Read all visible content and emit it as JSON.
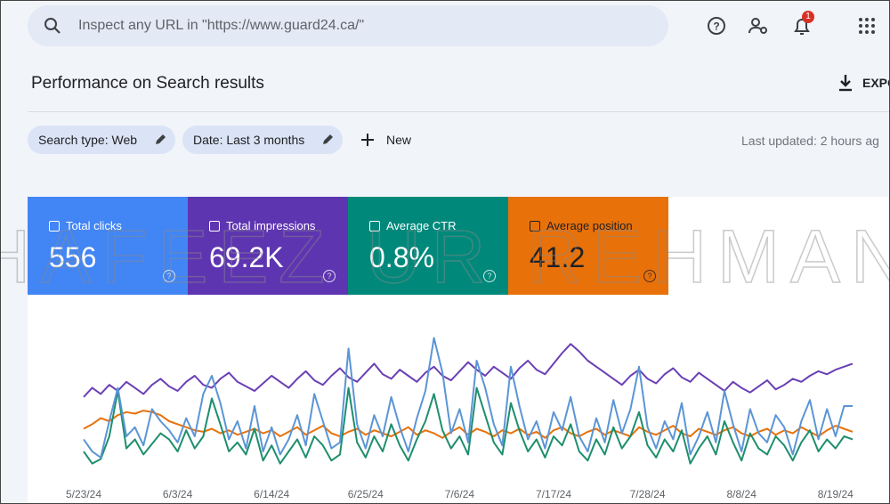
{
  "header": {
    "search_placeholder": "Inspect any URL in \"https://www.guard24.ca/\"",
    "notification_count": "1"
  },
  "toolbar": {
    "title": "Performance on Search results",
    "export": "EXPO",
    "last_updated": "Last updated: 2 hours ag"
  },
  "filters": [
    "Search type: Web",
    "Date: Last 3 months",
    "New"
  ],
  "metrics": [
    {
      "label": "Total clicks",
      "value": "556",
      "color": "#4285f4",
      "text_color": "#ffffff"
    },
    {
      "label": "Total impressions",
      "value": "69.2K",
      "color": "#5e35b1",
      "text_color": "#ffffff"
    },
    {
      "label": "Average CTR",
      "value": "0.8%",
      "color": "#00897b",
      "text_color": "#ffffff"
    },
    {
      "label": "Average position",
      "value": "41.2",
      "color": "#e8710a",
      "text_color": "#202124"
    }
  ],
  "watermark": "HAFEEZ UR REHMAN",
  "chart_data": {
    "type": "line",
    "categories": [
      "5/23/24",
      null,
      null,
      null,
      null,
      null,
      null,
      null,
      null,
      null,
      null,
      "6/3/24",
      null,
      null,
      null,
      null,
      null,
      null,
      null,
      null,
      null,
      null,
      "6/14/24",
      null,
      null,
      null,
      null,
      null,
      null,
      null,
      null,
      null,
      null,
      "6/25/24",
      null,
      null,
      null,
      null,
      null,
      null,
      null,
      null,
      null,
      null,
      "7/6/24",
      null,
      null,
      null,
      null,
      null,
      null,
      null,
      null,
      null,
      null,
      "7/17/24",
      null,
      null,
      null,
      null,
      null,
      null,
      null,
      null,
      null,
      null,
      "7/28/24",
      null,
      null,
      null,
      null,
      null,
      null,
      null,
      null,
      null,
      null,
      "8/8/24",
      null,
      null,
      null,
      null,
      null,
      null,
      null,
      null,
      null,
      null,
      "8/19/24",
      null,
      null
    ],
    "ylim": [
      0,
      100
    ],
    "series": [
      {
        "color": "#6a3fb5",
        "values": [
          56,
          62,
          58,
          64,
          60,
          66,
          62,
          58,
          64,
          68,
          63,
          60,
          66,
          70,
          64,
          62,
          68,
          72,
          66,
          63,
          60,
          65,
          70,
          66,
          62,
          68,
          73,
          67,
          64,
          70,
          75,
          69,
          66,
          72,
          78,
          71,
          68,
          74,
          70,
          66,
          72,
          76,
          70,
          67,
          73,
          79,
          74,
          70,
          76,
          72,
          68,
          75,
          80,
          74,
          71,
          78,
          85,
          91,
          86,
          80,
          76,
          72,
          68,
          64,
          70,
          74,
          68,
          65,
          71,
          75,
          69,
          66,
          72,
          68,
          64,
          60,
          66,
          62,
          59,
          63,
          67,
          61,
          64,
          68,
          66,
          70,
          73,
          71,
          74,
          76,
          78
        ]
      },
      {
        "color": "#e8710a",
        "values": [
          35,
          38,
          42,
          40,
          44,
          46,
          45,
          47,
          46,
          44,
          40,
          38,
          36,
          34,
          33,
          35,
          32,
          34,
          31,
          33,
          35,
          32,
          34,
          30,
          33,
          36,
          31,
          34,
          37,
          32,
          30,
          33,
          35,
          31,
          34,
          32,
          30,
          33,
          36,
          31,
          34,
          32,
          29,
          33,
          36,
          31,
          35,
          33,
          30,
          34,
          32,
          35,
          31,
          33,
          29,
          34,
          36,
          32,
          30,
          33,
          35,
          31,
          34,
          32,
          30,
          36,
          33,
          31,
          34,
          37,
          32,
          30,
          35,
          33,
          31,
          34,
          36,
          32,
          30,
          33,
          35,
          31,
          34,
          32,
          36,
          33,
          30,
          34,
          37,
          35,
          33
        ]
      },
      {
        "color": "#1e8e6e",
        "values": [
          20,
          12,
          15,
          30,
          60,
          22,
          28,
          18,
          25,
          32,
          28,
          20,
          34,
          22,
          30,
          55,
          38,
          20,
          26,
          18,
          35,
          14,
          24,
          12,
          20,
          28,
          16,
          30,
          24,
          14,
          18,
          62,
          26,
          16,
          30,
          20,
          38,
          24,
          14,
          28,
          40,
          58,
          34,
          22,
          30,
          18,
          62,
          44,
          26,
          18,
          52,
          34,
          20,
          28,
          16,
          30,
          24,
          38,
          20,
          14,
          28,
          18,
          36,
          22,
          30,
          46,
          24,
          16,
          28,
          20,
          34,
          12,
          22,
          30,
          18,
          40,
          26,
          14,
          32,
          22,
          18,
          30,
          24,
          14,
          26,
          34,
          20,
          28,
          22,
          30,
          28
        ]
      },
      {
        "color": "#5b95d6",
        "values": [
          28,
          20,
          16,
          40,
          62,
          30,
          36,
          24,
          48,
          40,
          34,
          26,
          42,
          30,
          58,
          70,
          52,
          28,
          40,
          22,
          50,
          20,
          36,
          18,
          28,
          44,
          24,
          58,
          40,
          22,
          26,
          88,
          38,
          22,
          44,
          30,
          56,
          36,
          20,
          42,
          60,
          95,
          72,
          32,
          48,
          26,
          80,
          62,
          38,
          24,
          76,
          50,
          28,
          40,
          22,
          46,
          34,
          56,
          30,
          20,
          42,
          26,
          54,
          32,
          48,
          76,
          36,
          22,
          40,
          28,
          52,
          18,
          30,
          46,
          26,
          60,
          38,
          20,
          48,
          32,
          26,
          44,
          36,
          18,
          40,
          54,
          28,
          48,
          30,
          50,
          50
        ]
      }
    ]
  }
}
